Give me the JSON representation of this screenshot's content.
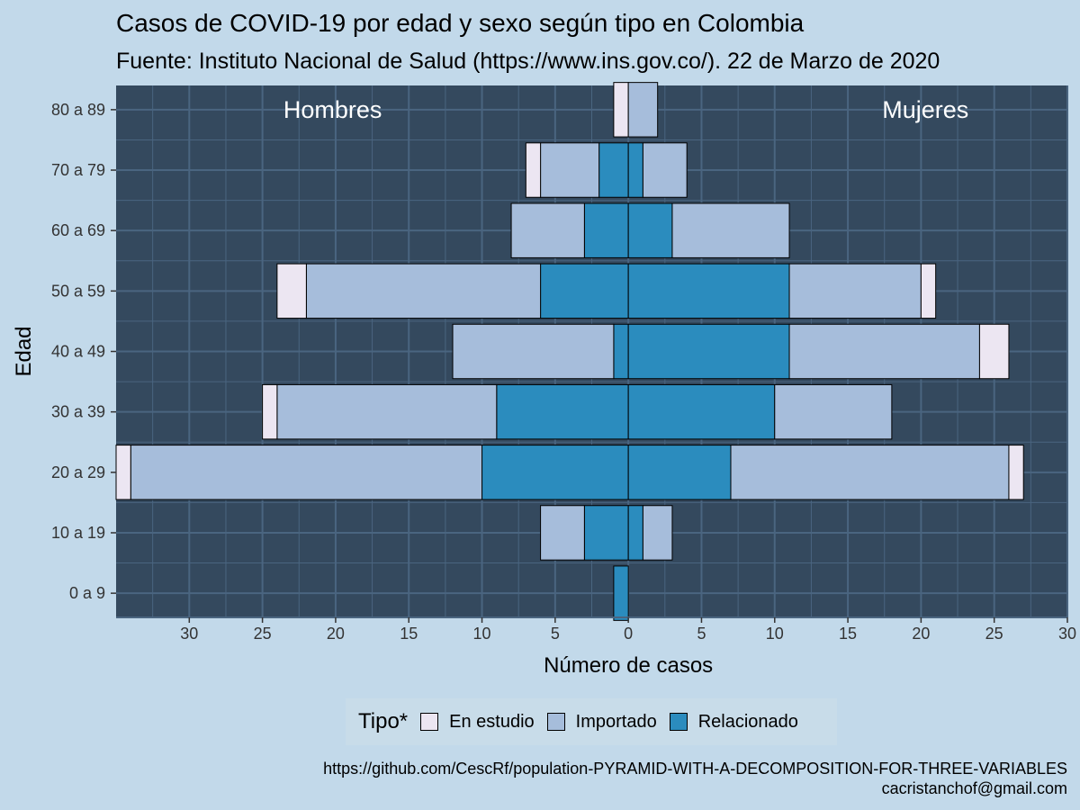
{
  "title": "Casos de COVID-19 por edad y sexo según tipo en Colombia",
  "subtitle": "Fuente: Instituto Nacional de Salud (https://www.ins.gov.co/). 22 de Marzo de 2020",
  "caption": {
    "line1": "https://github.com/CescRf/population-PYRAMID-WITH-A-DECOMPOSITION-FOR-THREE-VARIABLES",
    "line2": "cacristanchof@gmail.com"
  },
  "legend": {
    "title": "Tipo*",
    "items": [
      {
        "label": "En estudio",
        "color": "#ece6f2"
      },
      {
        "label": "Importado",
        "color": "#a6bddb"
      },
      {
        "label": "Relacionado",
        "color": "#2b8cbe"
      }
    ]
  },
  "colors": {
    "panel": "#34495e",
    "grid": "#4a6580",
    "page_background": "#c2d9ea"
  },
  "chart_data": {
    "type": "bar",
    "orientation": "horizontal",
    "subtype": "population-pyramid",
    "xlabel": "Número de casos",
    "ylabel": "Edad",
    "xlim": [
      -35,
      30
    ],
    "xticks": [
      -30,
      -25,
      -20,
      -15,
      -10,
      -5,
      0,
      5,
      10,
      15,
      20,
      25,
      30
    ],
    "xtick_labels": [
      "30",
      "25",
      "20",
      "15",
      "10",
      "5",
      "0",
      "5",
      "10",
      "15",
      "20",
      "25",
      "30"
    ],
    "categories": [
      "0 a 9",
      "10 a 19",
      "20 a 29",
      "30 a 39",
      "40 a 49",
      "50 a 59",
      "60 a 69",
      "70 a 79",
      "80 a 89"
    ],
    "panel_labels": {
      "left": "Hombres",
      "right": "Mujeres"
    },
    "stack_order": [
      "Relacionado",
      "Importado",
      "En estudio"
    ],
    "series": [
      {
        "sex": "Hombres",
        "name": "Relacionado",
        "values": [
          1,
          3,
          10,
          9,
          1,
          6,
          3,
          2,
          0
        ]
      },
      {
        "sex": "Hombres",
        "name": "Importado",
        "values": [
          0,
          3,
          24,
          15,
          11,
          16,
          5,
          4,
          0
        ]
      },
      {
        "sex": "Hombres",
        "name": "En estudio",
        "values": [
          0,
          0,
          1,
          1,
          0,
          2,
          0,
          1,
          1
        ]
      },
      {
        "sex": "Mujeres",
        "name": "Relacionado",
        "values": [
          0,
          1,
          7,
          10,
          11,
          11,
          3,
          1,
          0
        ]
      },
      {
        "sex": "Mujeres",
        "name": "Importado",
        "values": [
          0,
          2,
          19,
          8,
          13,
          9,
          8,
          3,
          2
        ]
      },
      {
        "sex": "Mujeres",
        "name": "En estudio",
        "values": [
          0,
          0,
          1,
          0,
          2,
          1,
          0,
          0,
          0
        ]
      }
    ],
    "grid": true,
    "legend_position": "bottom"
  }
}
